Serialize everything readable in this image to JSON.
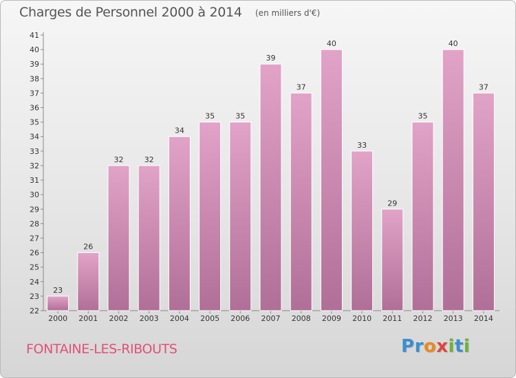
{
  "title": "Charges de Personnel 2000 à 2014",
  "unit_note": "(en milliers d'€)",
  "commune": "FONTAINE-LES-RIBOUTS",
  "logo": {
    "letters": [
      "P",
      "r",
      "o",
      "x",
      "i",
      "t",
      "i"
    ],
    "colors": [
      "#3a8fd0",
      "#3a8fd0",
      "#e98a1e",
      "#e0443c",
      "#6bb33a",
      "#3a8fd0",
      "#6bb33a"
    ]
  },
  "colors": {
    "bar_top": "#e2a3c8",
    "bar_bottom": "#b06f97",
    "commune": "#e0507a"
  },
  "chart_data": {
    "type": "bar",
    "categories": [
      "2000",
      "2001",
      "2002",
      "2003",
      "2004",
      "2005",
      "2006",
      "2007",
      "2008",
      "2009",
      "2010",
      "2011",
      "2012",
      "2013",
      "2014"
    ],
    "values": [
      23,
      26,
      32,
      32,
      34,
      35,
      35,
      39,
      37,
      40,
      33,
      29,
      35,
      40,
      37
    ],
    "ylim": [
      22,
      41
    ],
    "yticks": [
      22,
      23,
      24,
      25,
      26,
      27,
      28,
      29,
      30,
      31,
      32,
      33,
      34,
      35,
      36,
      37,
      38,
      39,
      40,
      41
    ],
    "grid": false
  }
}
